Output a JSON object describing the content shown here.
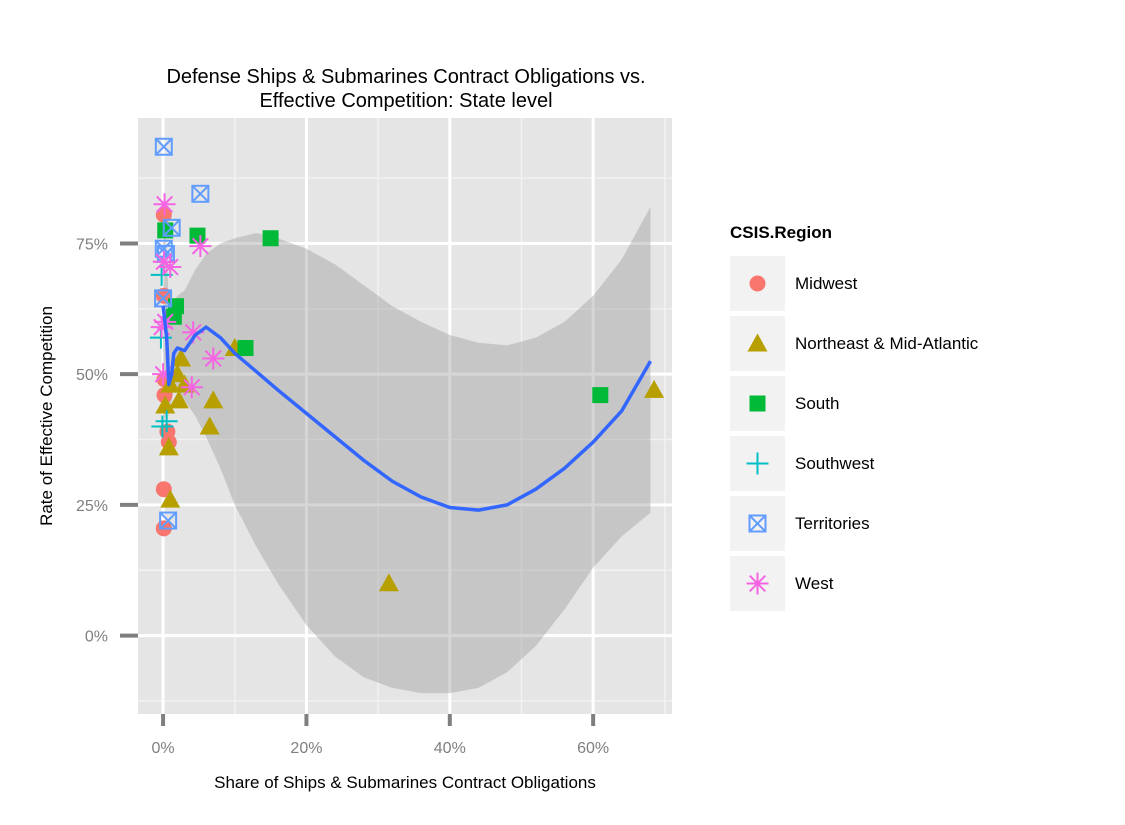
{
  "chart_data": {
    "type": "scatter",
    "title": [
      "Defense Ships & Submarines Contract Obligations vs.",
      "Effective Competition: State level"
    ],
    "xlabel": "Share of Ships & Submarines Contract Obligations",
    "ylabel": "Rate of Effective Competition",
    "xlim": [
      -0.035,
      0.71
    ],
    "ylim": [
      -0.15,
      0.99
    ],
    "x_ticks": [
      0,
      0.2,
      0.4,
      0.6
    ],
    "x_tick_labels": [
      "0%",
      "20%",
      "40%",
      "60%"
    ],
    "y_ticks": [
      0,
      0.25,
      0.5,
      0.75
    ],
    "y_tick_labels": [
      "0%",
      "25%",
      "50%",
      "75%"
    ],
    "grid": true,
    "legend": {
      "title": "CSIS.Region",
      "placement": "right",
      "entries": [
        {
          "name": "Midwest",
          "shape": "circle",
          "color": "#F8766D"
        },
        {
          "name": "Northeast & Mid-Atlantic",
          "shape": "triangle",
          "color": "#B79F00"
        },
        {
          "name": "South",
          "shape": "square",
          "color": "#00BA38"
        },
        {
          "name": "Southwest",
          "shape": "plus",
          "color": "#00BFC4"
        },
        {
          "name": "Territories",
          "shape": "boxcross",
          "color": "#619CFF"
        },
        {
          "name": "West",
          "shape": "asterisk",
          "color": "#F564E3"
        }
      ]
    },
    "series": [
      {
        "name": "Midwest",
        "points": [
          [
            0.001,
            0.805
          ],
          [
            0.001,
            0.65
          ],
          [
            0.002,
            0.49
          ],
          [
            0.002,
            0.46
          ],
          [
            0.006,
            0.39
          ],
          [
            0.008,
            0.37
          ],
          [
            0.001,
            0.28
          ],
          [
            0.001,
            0.205
          ]
        ]
      },
      {
        "name": "Northeast & Mid-Atlantic",
        "points": [
          [
            0.01,
            0.48
          ],
          [
            0.003,
            0.44
          ],
          [
            0.008,
            0.36
          ],
          [
            0.01,
            0.26
          ],
          [
            0.02,
            0.5
          ],
          [
            0.025,
            0.53
          ],
          [
            0.022,
            0.45
          ],
          [
            0.03,
            0.48
          ],
          [
            0.07,
            0.45
          ],
          [
            0.065,
            0.4
          ],
          [
            0.1,
            0.55
          ],
          [
            0.315,
            0.1
          ],
          [
            0.685,
            0.47
          ]
        ]
      },
      {
        "name": "South",
        "points": [
          [
            0.003,
            0.775
          ],
          [
            0.048,
            0.765
          ],
          [
            0.15,
            0.76
          ],
          [
            0.018,
            0.63
          ],
          [
            0.015,
            0.61
          ],
          [
            0.115,
            0.55
          ],
          [
            0.61,
            0.46
          ]
        ]
      },
      {
        "name": "Southwest",
        "points": [
          [
            -0.002,
            0.69
          ],
          [
            -0.003,
            0.57
          ],
          [
            -0.001,
            0.4
          ],
          [
            0.005,
            0.41
          ]
        ]
      },
      {
        "name": "Territories",
        "points": [
          [
            0.001,
            0.935
          ],
          [
            0.052,
            0.845
          ],
          [
            0.012,
            0.78
          ],
          [
            0.001,
            0.74
          ],
          [
            0.004,
            0.73
          ],
          [
            0.0,
            0.645
          ],
          [
            0.007,
            0.22
          ]
        ]
      },
      {
        "name": "West",
        "points": [
          [
            0.002,
            0.825
          ],
          [
            0.001,
            0.715
          ],
          [
            0.01,
            0.705
          ],
          [
            0.052,
            0.745
          ],
          [
            0.042,
            0.58
          ],
          [
            0.003,
            0.6
          ],
          [
            0.07,
            0.53
          ],
          [
            0.04,
            0.475
          ],
          [
            0.0,
            0.5
          ],
          [
            -0.002,
            0.59
          ]
        ]
      }
    ],
    "smooth": {
      "color": "#3366FF",
      "band_color": "#999999",
      "x": [
        0.0,
        0.005,
        0.008,
        0.012,
        0.015,
        0.02,
        0.03,
        0.045,
        0.06,
        0.08,
        0.1,
        0.13,
        0.16,
        0.2,
        0.24,
        0.28,
        0.32,
        0.36,
        0.4,
        0.44,
        0.48,
        0.52,
        0.56,
        0.6,
        0.64,
        0.68
      ],
      "y": [
        0.63,
        0.57,
        0.48,
        0.5,
        0.54,
        0.55,
        0.545,
        0.575,
        0.59,
        0.57,
        0.54,
        0.505,
        0.47,
        0.425,
        0.38,
        0.335,
        0.295,
        0.265,
        0.245,
        0.24,
        0.25,
        0.28,
        0.32,
        0.37,
        0.43,
        0.525
      ],
      "lower": [
        0.4,
        0.43,
        0.42,
        0.45,
        0.47,
        0.47,
        0.45,
        0.42,
        0.38,
        0.32,
        0.25,
        0.17,
        0.1,
        0.02,
        -0.04,
        -0.08,
        -0.1,
        -0.11,
        -0.11,
        -0.1,
        -0.07,
        -0.02,
        0.05,
        0.13,
        0.19,
        0.235
      ],
      "upper": [
        0.83,
        0.74,
        0.63,
        0.62,
        0.64,
        0.65,
        0.66,
        0.7,
        0.73,
        0.75,
        0.76,
        0.77,
        0.76,
        0.74,
        0.71,
        0.67,
        0.63,
        0.6,
        0.575,
        0.56,
        0.555,
        0.57,
        0.6,
        0.65,
        0.72,
        0.82
      ]
    }
  }
}
